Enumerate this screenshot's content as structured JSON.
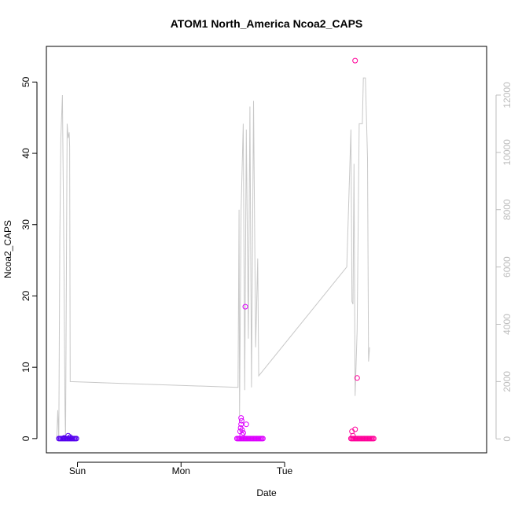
{
  "chart_data": {
    "type": "scatter",
    "title": "ATOM1 North_America Ncoa2_CAPS",
    "xlabel": "Date",
    "ylabel": "Ncoa2_CAPS",
    "x_ticks": [
      "Sun",
      "Mon",
      "Tue"
    ],
    "xlim": [
      -1.3,
      2.95
    ],
    "ylim": [
      -2,
      55
    ],
    "y_ticks": [
      0,
      10,
      20,
      30,
      40,
      50
    ],
    "y2lim": [
      -486,
      13700
    ],
    "y2_ticks": [
      0,
      2000,
      4000,
      6000,
      8000,
      10000,
      12000
    ],
    "grid": false,
    "legend": "none",
    "colors": {
      "axis": "#000000",
      "line": "#c8c8c8",
      "right_axis": "#bdbdbd",
      "series1": "#5500ee",
      "series2": "#dd00ff",
      "series3": "#ff0099"
    },
    "series": [
      {
        "color": "#5500ee",
        "points": [
          [
            -1.18,
            0
          ],
          [
            -1.17,
            0
          ],
          [
            -1.16,
            0
          ],
          [
            -1.15,
            0
          ],
          [
            -1.14,
            0
          ],
          [
            -1.13,
            0
          ],
          [
            -1.12,
            0
          ],
          [
            -1.11,
            0
          ],
          [
            -1.1,
            0
          ],
          [
            -1.09,
            0
          ],
          [
            -1.08,
            0
          ],
          [
            -1.07,
            0
          ],
          [
            -1.06,
            0
          ],
          [
            -1.05,
            0
          ],
          [
            -1.04,
            0
          ],
          [
            -1.03,
            0
          ],
          [
            -1.02,
            0
          ],
          [
            -1.01,
            0
          ],
          [
            -1.09,
            0.4
          ],
          [
            -1.07,
            0.2
          ],
          [
            -1.13,
            0.1
          ]
        ]
      },
      {
        "color": "#dd00ff",
        "points": [
          [
            0.54,
            0
          ],
          [
            0.55,
            0
          ],
          [
            0.56,
            0
          ],
          [
            0.57,
            0
          ],
          [
            0.58,
            0
          ],
          [
            0.59,
            0
          ],
          [
            0.6,
            0
          ],
          [
            0.61,
            0
          ],
          [
            0.62,
            0
          ],
          [
            0.63,
            0
          ],
          [
            0.64,
            0
          ],
          [
            0.65,
            0
          ],
          [
            0.66,
            0
          ],
          [
            0.67,
            0
          ],
          [
            0.68,
            0
          ],
          [
            0.69,
            0
          ],
          [
            0.7,
            0
          ],
          [
            0.71,
            0
          ],
          [
            0.72,
            0
          ],
          [
            0.73,
            0
          ],
          [
            0.74,
            0
          ],
          [
            0.75,
            0
          ],
          [
            0.76,
            0
          ],
          [
            0.77,
            0
          ],
          [
            0.78,
            0
          ],
          [
            0.79,
            0
          ],
          [
            0.57,
            1
          ],
          [
            0.575,
            1.5
          ],
          [
            0.58,
            2.9
          ],
          [
            0.585,
            2.5
          ],
          [
            0.59,
            1.2
          ],
          [
            0.6,
            0.8
          ],
          [
            0.58,
            2
          ],
          [
            0.63,
            2
          ],
          [
            0.59,
            0.5
          ],
          [
            0.62,
            18.5
          ]
        ]
      },
      {
        "color": "#ff0099",
        "points": [
          [
            1.64,
            0
          ],
          [
            1.65,
            0
          ],
          [
            1.66,
            0
          ],
          [
            1.67,
            0
          ],
          [
            1.68,
            0
          ],
          [
            1.69,
            0
          ],
          [
            1.7,
            0
          ],
          [
            1.71,
            0
          ],
          [
            1.72,
            0
          ],
          [
            1.73,
            0
          ],
          [
            1.74,
            0
          ],
          [
            1.75,
            0
          ],
          [
            1.76,
            0
          ],
          [
            1.77,
            0
          ],
          [
            1.78,
            0
          ],
          [
            1.79,
            0
          ],
          [
            1.8,
            0
          ],
          [
            1.81,
            0
          ],
          [
            1.82,
            0
          ],
          [
            1.83,
            0
          ],
          [
            1.84,
            0
          ],
          [
            1.85,
            0
          ],
          [
            1.86,
            0
          ],
          [
            1.65,
            1
          ],
          [
            1.68,
            1.3
          ],
          [
            1.66,
            0.4
          ],
          [
            1.7,
            8.5
          ],
          [
            1.68,
            53
          ]
        ]
      }
    ],
    "line_secondary": [
      [
        -1.2,
        0
      ],
      [
        -1.19,
        1000
      ],
      [
        -1.18,
        0
      ],
      [
        -1.17,
        7000
      ],
      [
        -1.16,
        10500
      ],
      [
        -1.145,
        12000
      ],
      [
        -1.13,
        6000
      ],
      [
        -1.12,
        1000
      ],
      [
        -1.115,
        0
      ],
      [
        -1.1,
        11000
      ],
      [
        -1.09,
        10500
      ],
      [
        -1.08,
        10700
      ],
      [
        -1.075,
        10200
      ],
      [
        -1.07,
        2000
      ],
      [
        0.55,
        1800
      ],
      [
        0.56,
        8000
      ],
      [
        0.565,
        800
      ],
      [
        0.58,
        8000
      ],
      [
        0.6,
        11000
      ],
      [
        0.615,
        1700
      ],
      [
        0.63,
        10800
      ],
      [
        0.65,
        3500
      ],
      [
        0.665,
        11600
      ],
      [
        0.68,
        1800
      ],
      [
        0.7,
        11800
      ],
      [
        0.72,
        3200
      ],
      [
        0.74,
        6300
      ],
      [
        0.75,
        2200
      ],
      [
        1.6,
        6000
      ],
      [
        1.64,
        10800
      ],
      [
        1.65,
        4800
      ],
      [
        1.66,
        4700
      ],
      [
        1.67,
        9600
      ],
      [
        1.68,
        1500
      ],
      [
        1.7,
        3800
      ],
      [
        1.72,
        11000
      ],
      [
        1.75,
        11000
      ],
      [
        1.76,
        12600
      ],
      [
        1.78,
        12600
      ],
      [
        1.8,
        9800
      ],
      [
        1.81,
        2700
      ],
      [
        1.82,
        3200
      ]
    ]
  }
}
